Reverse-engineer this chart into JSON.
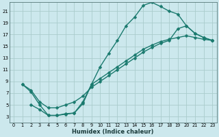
{
  "title": "",
  "xlabel": "Humidex (Indice chaleur)",
  "ylabel": "",
  "background_color": "#cce8ed",
  "grid_color": "#aacccc",
  "line_color": "#1a7a6e",
  "xlim": [
    -0.5,
    23.5
  ],
  "ylim": [
    2,
    22.5
  ],
  "xticks": [
    0,
    1,
    2,
    3,
    4,
    5,
    6,
    7,
    8,
    9,
    10,
    11,
    12,
    13,
    14,
    15,
    16,
    17,
    18,
    19,
    20,
    21,
    22,
    23
  ],
  "yticks": [
    3,
    5,
    7,
    9,
    11,
    13,
    15,
    17,
    19,
    21
  ],
  "curve1_x": [
    1,
    2,
    3,
    4,
    5,
    6,
    7,
    8,
    9,
    10,
    11,
    12,
    13,
    14,
    15,
    16,
    17,
    18,
    19,
    20,
    21,
    22,
    23
  ],
  "curve1_y": [
    8.5,
    7.2,
    5.0,
    3.2,
    3.2,
    3.4,
    3.6,
    5.2,
    8.5,
    11.5,
    13.8,
    16.0,
    18.5,
    20.0,
    22.0,
    22.5,
    21.8,
    21.0,
    20.5,
    18.5,
    17.2,
    16.5,
    16.0
  ],
  "curve2_x": [
    1,
    2,
    3,
    4,
    5,
    6,
    7,
    8,
    9,
    10,
    11,
    12,
    13,
    14,
    15,
    16,
    17,
    18,
    19,
    20,
    21,
    22,
    23
  ],
  "curve2_y": [
    8.5,
    7.5,
    5.5,
    4.5,
    4.5,
    5.0,
    5.5,
    6.5,
    8.0,
    9.0,
    10.0,
    11.0,
    12.0,
    13.0,
    14.0,
    14.8,
    15.5,
    16.0,
    18.0,
    18.5,
    17.2,
    16.5,
    16.0
  ],
  "curve3_x": [
    2,
    3,
    4,
    5,
    6,
    7,
    8,
    9,
    10,
    11,
    12,
    13,
    14,
    15,
    16,
    17,
    18,
    19,
    20,
    21,
    22,
    23
  ],
  "curve3_y": [
    5.0,
    4.2,
    3.2,
    3.2,
    3.5,
    3.6,
    5.5,
    8.5,
    9.5,
    10.5,
    11.5,
    12.5,
    13.5,
    14.5,
    15.2,
    15.8,
    16.2,
    16.5,
    16.8,
    16.5,
    16.2,
    16.0
  ],
  "marker_size": 2.5,
  "line_width": 1.0
}
